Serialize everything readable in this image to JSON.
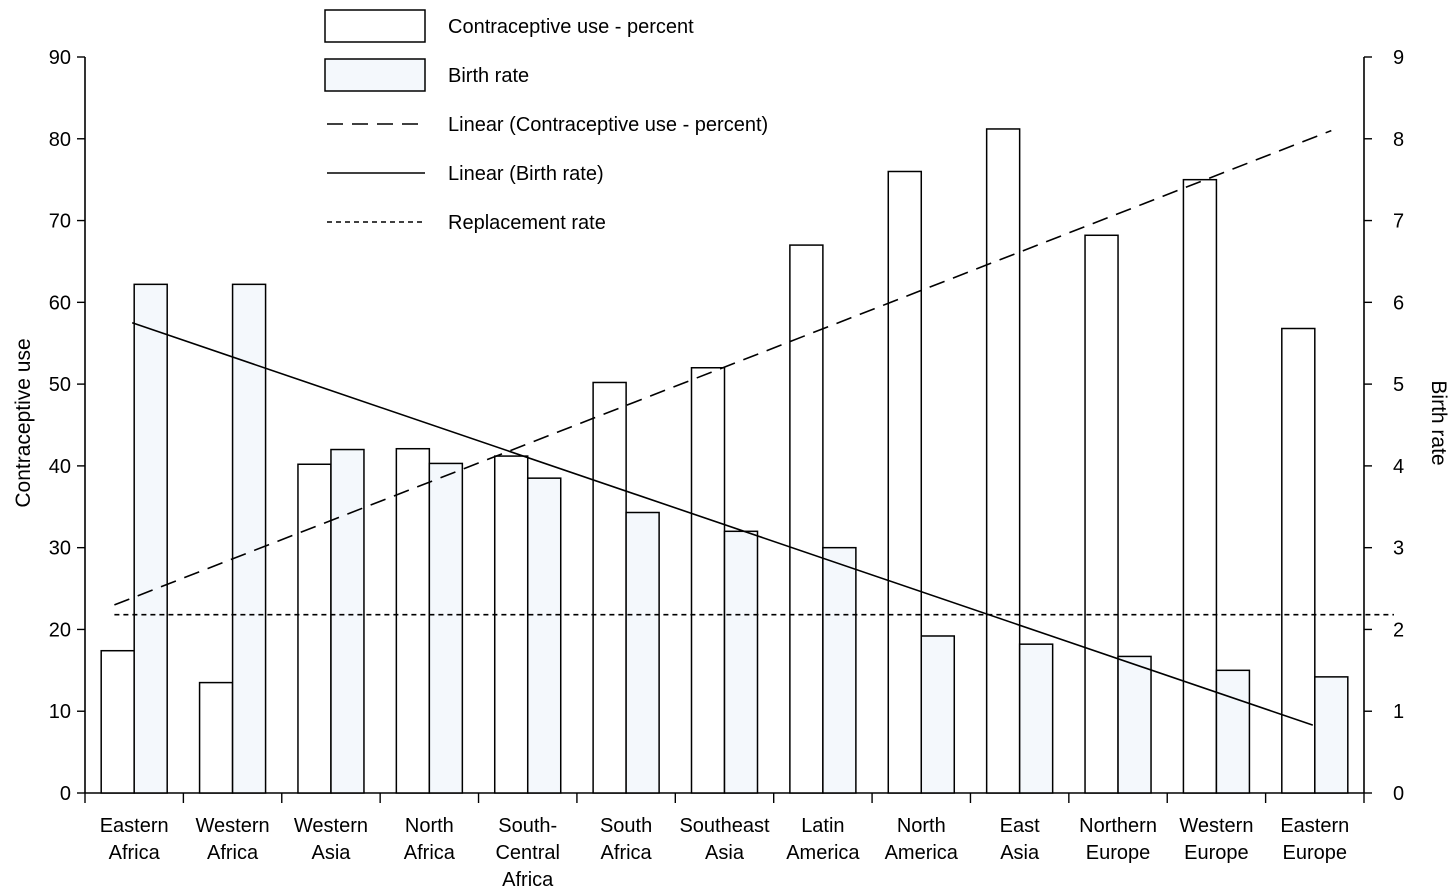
{
  "chart_data": {
    "type": "bar",
    "categories": [
      [
        "Eastern",
        "Africa"
      ],
      [
        "Western",
        "Africa"
      ],
      [
        "Western",
        "Asia"
      ],
      [
        "North",
        "Africa"
      ],
      [
        "South-",
        "Central",
        "Africa"
      ],
      [
        "South",
        "Africa"
      ],
      [
        "Southeast",
        "Asia"
      ],
      [
        "Latin",
        "America"
      ],
      [
        "North",
        "America"
      ],
      [
        "East",
        "Asia"
      ],
      [
        "Northern",
        "Europe"
      ],
      [
        "Western",
        "Europe"
      ],
      [
        "Eastern",
        "Europe"
      ]
    ],
    "series": [
      {
        "name": "Contraceptive use - percent",
        "axis": "left",
        "fill": "#ffffff",
        "values": [
          17.4,
          13.5,
          40.2,
          42.1,
          41.2,
          50.2,
          52.0,
          67.0,
          76.0,
          81.2,
          68.2,
          75.0,
          56.8
        ]
      },
      {
        "name": "Birth rate",
        "axis": "right",
        "fill": "#f4f8fc",
        "values": [
          6.22,
          6.22,
          4.2,
          4.03,
          3.85,
          3.43,
          3.2,
          3.0,
          1.92,
          1.82,
          1.67,
          1.5,
          1.42
        ]
      }
    ],
    "lines": [
      {
        "name": "Linear (Contraceptive use - percent)",
        "style": "dashed",
        "axis": "left",
        "start": 23.0,
        "end": 81.0
      },
      {
        "name": "Linear (Birth rate)",
        "style": "solid",
        "axis": "right",
        "start": 5.75,
        "end": 0.83
      },
      {
        "name": "Replacement rate",
        "style": "dotted",
        "axis": "right",
        "value": 2.18
      }
    ],
    "ylabel": "Contraceptive use",
    "y2label": "Birth rate",
    "ylim": [
      0,
      90
    ],
    "y2lim": [
      0,
      9
    ],
    "yticks": [
      "0",
      "10",
      "20",
      "30",
      "40",
      "50",
      "60",
      "70",
      "80",
      "90"
    ],
    "y2ticks": [
      "0",
      "1",
      "2",
      "3",
      "4",
      "5",
      "6",
      "7",
      "8",
      "9"
    ],
    "legend_position": "top-center",
    "grid": false
  }
}
